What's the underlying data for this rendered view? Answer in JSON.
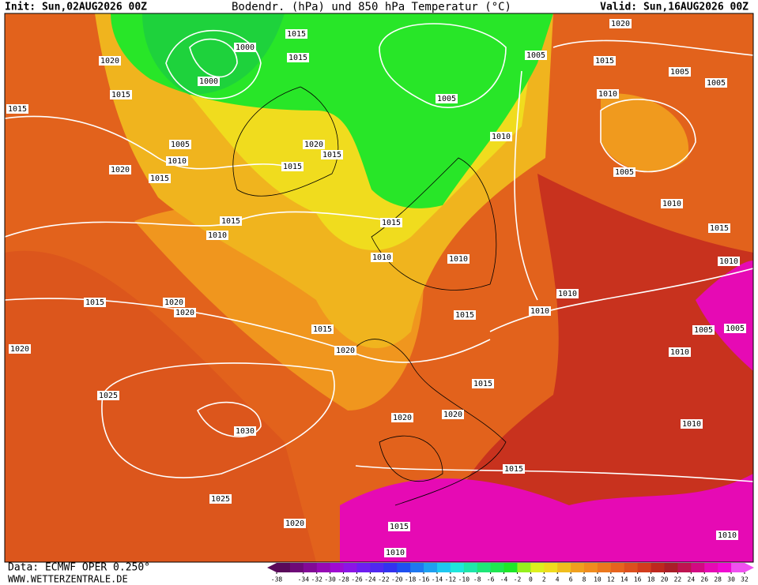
{
  "header": {
    "init": "Init: Sun,02AUG2026 00Z",
    "title": "Bodendr. (hPa) und 850 hPa Temperatur (°C)",
    "valid": "Valid: Sun,16AUG2026 00Z"
  },
  "footer": {
    "source": "Data: ECMWF OPER 0.250°",
    "website": "WWW.WETTERZENTRALE.DE"
  },
  "colorbar": {
    "ticks": [
      -38,
      -34,
      -32,
      -30,
      -28,
      -26,
      -24,
      -22,
      -20,
      -18,
      -16,
      -14,
      -12,
      -10,
      -8,
      -6,
      -4,
      -2,
      0,
      2,
      4,
      6,
      8,
      10,
      12,
      14,
      16,
      18,
      20,
      22,
      24,
      26,
      28,
      30,
      32
    ],
    "range": [
      -38,
      32
    ],
    "colors": [
      "#5a0a5a",
      "#6e0a78",
      "#820a96",
      "#960ab4",
      "#a00ad2",
      "#8c14e6",
      "#6e1ef0",
      "#5028f0",
      "#3232f0",
      "#1e50f0",
      "#1e78f0",
      "#1ea0f0",
      "#1ec8f0",
      "#1ee6dc",
      "#1ee6aa",
      "#1ee678",
      "#1ee650",
      "#1ee628",
      "#96f01e",
      "#dcf01e",
      "#f0dc1e",
      "#f0be1e",
      "#f0a01e",
      "#f08c1e",
      "#eb781e",
      "#e6641e",
      "#dc501e",
      "#d23c1e",
      "#be281e",
      "#aa1e28",
      "#be1450",
      "#d20a82",
      "#e60ab4",
      "#f00ad2",
      "#f050f0"
    ]
  },
  "isobar_labels": [
    "1015",
    "1015",
    "1000",
    "1000",
    "1020",
    "1015",
    "1015",
    "1005",
    "1010",
    "1020",
    "1015",
    "1015",
    "1020",
    "1015",
    "1015",
    "1010",
    "1015",
    "1010",
    "1010",
    "1005",
    "1005",
    "1020",
    "1015",
    "1005",
    "1005",
    "1010",
    "1010",
    "1005",
    "1010",
    "1015",
    "1010",
    "1010",
    "1010",
    "1015",
    "1015",
    "1020",
    "1020",
    "1015",
    "1020",
    "1020",
    "1005",
    "1005",
    "1010",
    "1015",
    "1025",
    "1030",
    "1020",
    "1020",
    "1010",
    "1015",
    "1025",
    "1020",
    "1015",
    "1010",
    "1010"
  ]
}
